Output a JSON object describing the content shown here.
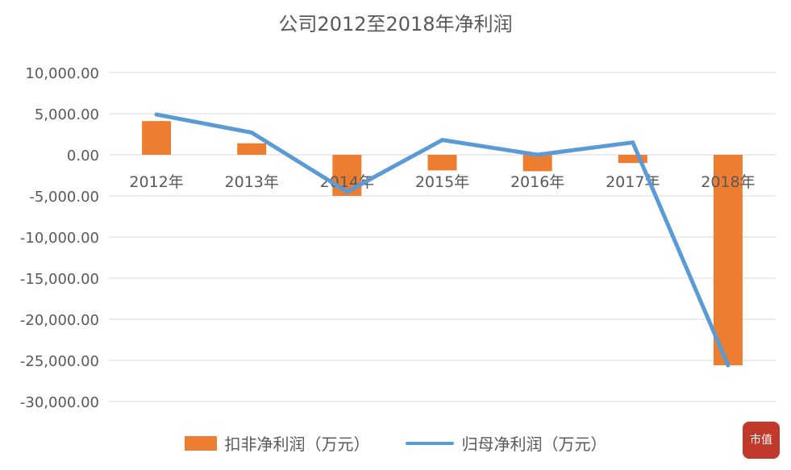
{
  "chart_data": {
    "type": "bar+line",
    "title": "公司2012至2018年净利润",
    "categories": [
      "2012年",
      "2013年",
      "2014年",
      "2015年",
      "2016年",
      "2017年",
      "2018年"
    ],
    "series": [
      {
        "name": "扣非净利润（万元）",
        "type": "bar",
        "color": "#ED7D31",
        "values": [
          4100,
          1400,
          -5000,
          -1900,
          -2000,
          -1000,
          -25600
        ]
      },
      {
        "name": "归母净利润（万元）",
        "type": "line",
        "color": "#5B9BD5",
        "values": [
          4900,
          2700,
          -4500,
          1800,
          0,
          1500,
          -25600
        ]
      }
    ],
    "yticks": [
      "10,000.00",
      "5,000.00",
      "0.00",
      "-5,000.00",
      "-10,000.00",
      "-15,000.00",
      "-20,000.00",
      "-25,000.00",
      "-30,000.00"
    ],
    "ylim": [
      -30000,
      10000
    ],
    "grid": true,
    "legend_position": "bottom"
  },
  "watermark": {
    "logo_text": "市值"
  }
}
